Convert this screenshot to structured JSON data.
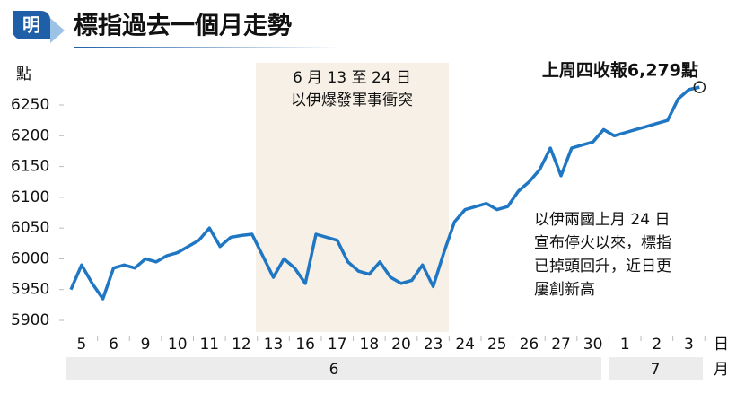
{
  "logo": "明",
  "chart_data": {
    "type": "line",
    "title": "標指過去一個月走勢",
    "y_label": "點",
    "x_unit": "日",
    "month_unit": "月",
    "month_labels": [
      "6",
      "7"
    ],
    "shaded_note": [
      "6 月 13 至 24 日",
      "以伊爆發軍事衝突"
    ],
    "right_note": [
      "以伊兩國上月 24 日",
      "宣布停火以來，標指",
      "已掉頭回升，近日更",
      "屢創新高"
    ],
    "last_note": "上周四收報6,279點",
    "categories": [
      null,
      "5",
      null,
      null,
      "6",
      null,
      null,
      "9",
      null,
      null,
      "10",
      null,
      null,
      "11",
      null,
      null,
      "12",
      null,
      null,
      "13",
      null,
      null,
      "16",
      null,
      null,
      "17",
      null,
      null,
      "18",
      null,
      null,
      "20",
      null,
      null,
      "23",
      null,
      null,
      "24",
      null,
      null,
      "25",
      null,
      null,
      "26",
      null,
      null,
      "27",
      null,
      null,
      "30",
      null,
      null,
      "1",
      null,
      null,
      "2",
      null,
      null,
      "3",
      null
    ],
    "series": [
      {
        "name": "標指",
        "color": "#1f77c4",
        "values": [
          5950,
          5990,
          5960,
          5935,
          5985,
          5990,
          5985,
          6000,
          5995,
          6005,
          6010,
          6020,
          6030,
          6050,
          6020,
          6035,
          6038,
          6040,
          6005,
          5970,
          6000,
          5985,
          5960,
          6040,
          6035,
          6030,
          5995,
          5980,
          5975,
          5995,
          5970,
          5960,
          5965,
          5990,
          5955,
          6010,
          6060,
          6080,
          6085,
          6090,
          6080,
          6085,
          6110,
          6125,
          6145,
          6180,
          6135,
          6180,
          6185,
          6190,
          6210,
          6200,
          6205,
          6210,
          6215,
          6220,
          6225,
          6260,
          6275,
          6279
        ]
      }
    ],
    "ylim": [
      5880,
      6290
    ],
    "yticks": [
      5900,
      5950,
      6000,
      6050,
      6100,
      6150,
      6200,
      6250
    ],
    "grid": false
  }
}
